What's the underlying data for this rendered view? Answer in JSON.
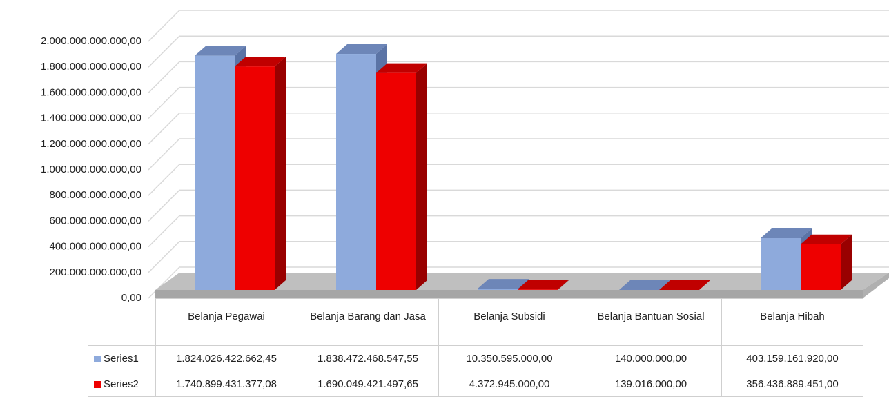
{
  "chart_data": {
    "type": "bar3d",
    "categories": [
      "Belanja Pegawai",
      "Belanja Barang dan Jasa",
      "Belanja Subsidi",
      "Belanja Bantuan Sosial",
      "Belanja Hibah"
    ],
    "series": [
      {
        "name": "Series1",
        "color": "#8eaadc",
        "values": [
          1824026422662.45,
          1838472468547.55,
          10350595000,
          140000000,
          403159161920
        ],
        "value_labels": [
          "1.824.026.422.662,45",
          "1.838.472.468.547,55",
          "10.350.595.000,00",
          "140.000.000,00",
          "403.159.161.920,00"
        ]
      },
      {
        "name": "Series2",
        "color": "#ee0000",
        "values": [
          1740899431377.08,
          1690049421497.65,
          4372945000,
          139016000,
          356436889451
        ],
        "value_labels": [
          "1.740.899.431.377,08",
          "1.690.049.421.497,65",
          "4.372.945.000,00",
          "139.016.000,00",
          "356.436.889.451,00"
        ]
      }
    ],
    "ylim": [
      0,
      2000000000000
    ],
    "yticks": [
      {
        "value": 0,
        "label": "0,00"
      },
      {
        "value": 200000000000,
        "label": "200.000.000.000,00"
      },
      {
        "value": 400000000000,
        "label": "400.000.000.000,00"
      },
      {
        "value": 600000000000,
        "label": "600.000.000.000,00"
      },
      {
        "value": 800000000000,
        "label": "800.000.000.000,00"
      },
      {
        "value": 1000000000000,
        "label": "1.000.000.000.000,00"
      },
      {
        "value": 1200000000000,
        "label": "1.200.000.000.000,00"
      },
      {
        "value": 1400000000000,
        "label": "1.400.000.000.000,00"
      },
      {
        "value": 1600000000000,
        "label": "1.600.000.000.000,00"
      },
      {
        "value": 1800000000000,
        "label": "1.800.000.000.000,00"
      },
      {
        "value": 2000000000000,
        "label": "2.000.000.000.000,00"
      }
    ],
    "grid": true
  }
}
